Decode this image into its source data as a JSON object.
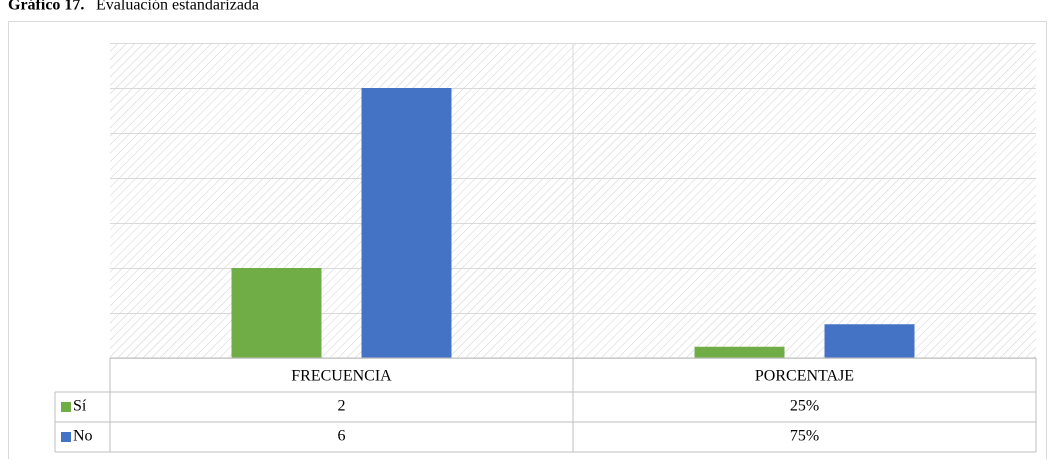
{
  "chart_data": {
    "type": "bar",
    "title_label": "Gráfico 17.",
    "title": "Evaluación estandarizada",
    "categories": [
      "FRECUENCIA",
      "PORCENTAJE"
    ],
    "series": [
      {
        "name": "Sí",
        "color": "#70ad47",
        "values": [
          2,
          0.25
        ],
        "value_labels": [
          "2",
          "25%"
        ]
      },
      {
        "name": "No",
        "color": "#4472c4",
        "values": [
          6,
          0.75
        ],
        "value_labels": [
          "6",
          "75%"
        ]
      }
    ],
    "ylim": [
      0,
      7
    ],
    "yticks": [
      0,
      1,
      2,
      3,
      4,
      5,
      6,
      7
    ],
    "grid": true,
    "legend": "table"
  }
}
